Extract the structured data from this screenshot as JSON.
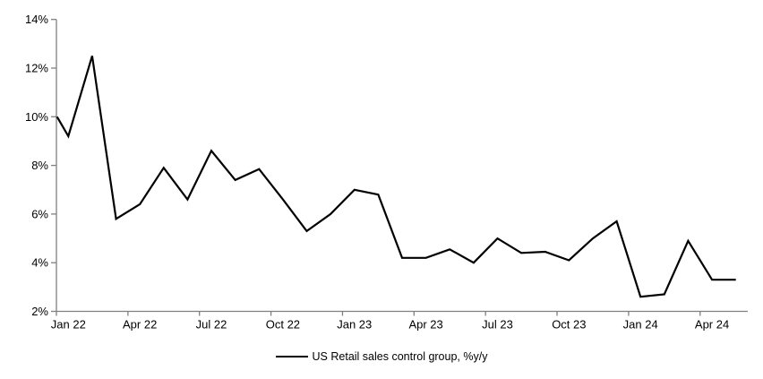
{
  "chart_data": {
    "type": "line",
    "title": "",
    "xlabel": "",
    "ylabel": "",
    "ylim": [
      2,
      14
    ],
    "ytick_step": 2,
    "ytick_labels": [
      "2%",
      "4%",
      "6%",
      "8%",
      "10%",
      "12%",
      "14%"
    ],
    "grid": false,
    "legend_position": "bottom-center",
    "x_label_every": 3,
    "x_labels_shown": [
      "Jan 22",
      "Apr 22",
      "Jul 22",
      "Oct 22",
      "Jan 23",
      "Apr 23",
      "Jul 23",
      "Oct 23",
      "Jan 24",
      "Apr 24"
    ],
    "categories": [
      "Jan 22",
      "Feb 22",
      "Mar 22",
      "Apr 22",
      "May 22",
      "Jun 22",
      "Jul 22",
      "Aug 22",
      "Sep 22",
      "Oct 22",
      "Nov 22",
      "Dec 22",
      "Jan 23",
      "Feb 23",
      "Mar 23",
      "Apr 23",
      "May 23",
      "Jun 23",
      "Jul 23",
      "Aug 23",
      "Sep 23",
      "Oct 23",
      "Nov 23",
      "Dec 23",
      "Jan 24",
      "Feb 24",
      "Mar 24",
      "Apr 24",
      "May 24"
    ],
    "series": [
      {
        "name": "US Retail sales control group, %y/y",
        "values": [
          9.2,
          12.5,
          5.8,
          6.4,
          7.9,
          6.6,
          8.6,
          7.4,
          7.85,
          6.6,
          5.3,
          6.0,
          7.0,
          6.8,
          4.2,
          4.2,
          4.55,
          4.0,
          5.0,
          4.4,
          4.45,
          4.1,
          5.0,
          5.7,
          2.6,
          2.7,
          4.9,
          3.3,
          3.3
        ]
      }
    ],
    "lead_in_value_at_axis": 10.0,
    "colors": {
      "line": "#000000",
      "axis": "#808080",
      "text": "#000000",
      "background": "#ffffff"
    }
  },
  "legend": {
    "label": "US Retail sales control group, %y/y",
    "marker": "line-icon"
  }
}
